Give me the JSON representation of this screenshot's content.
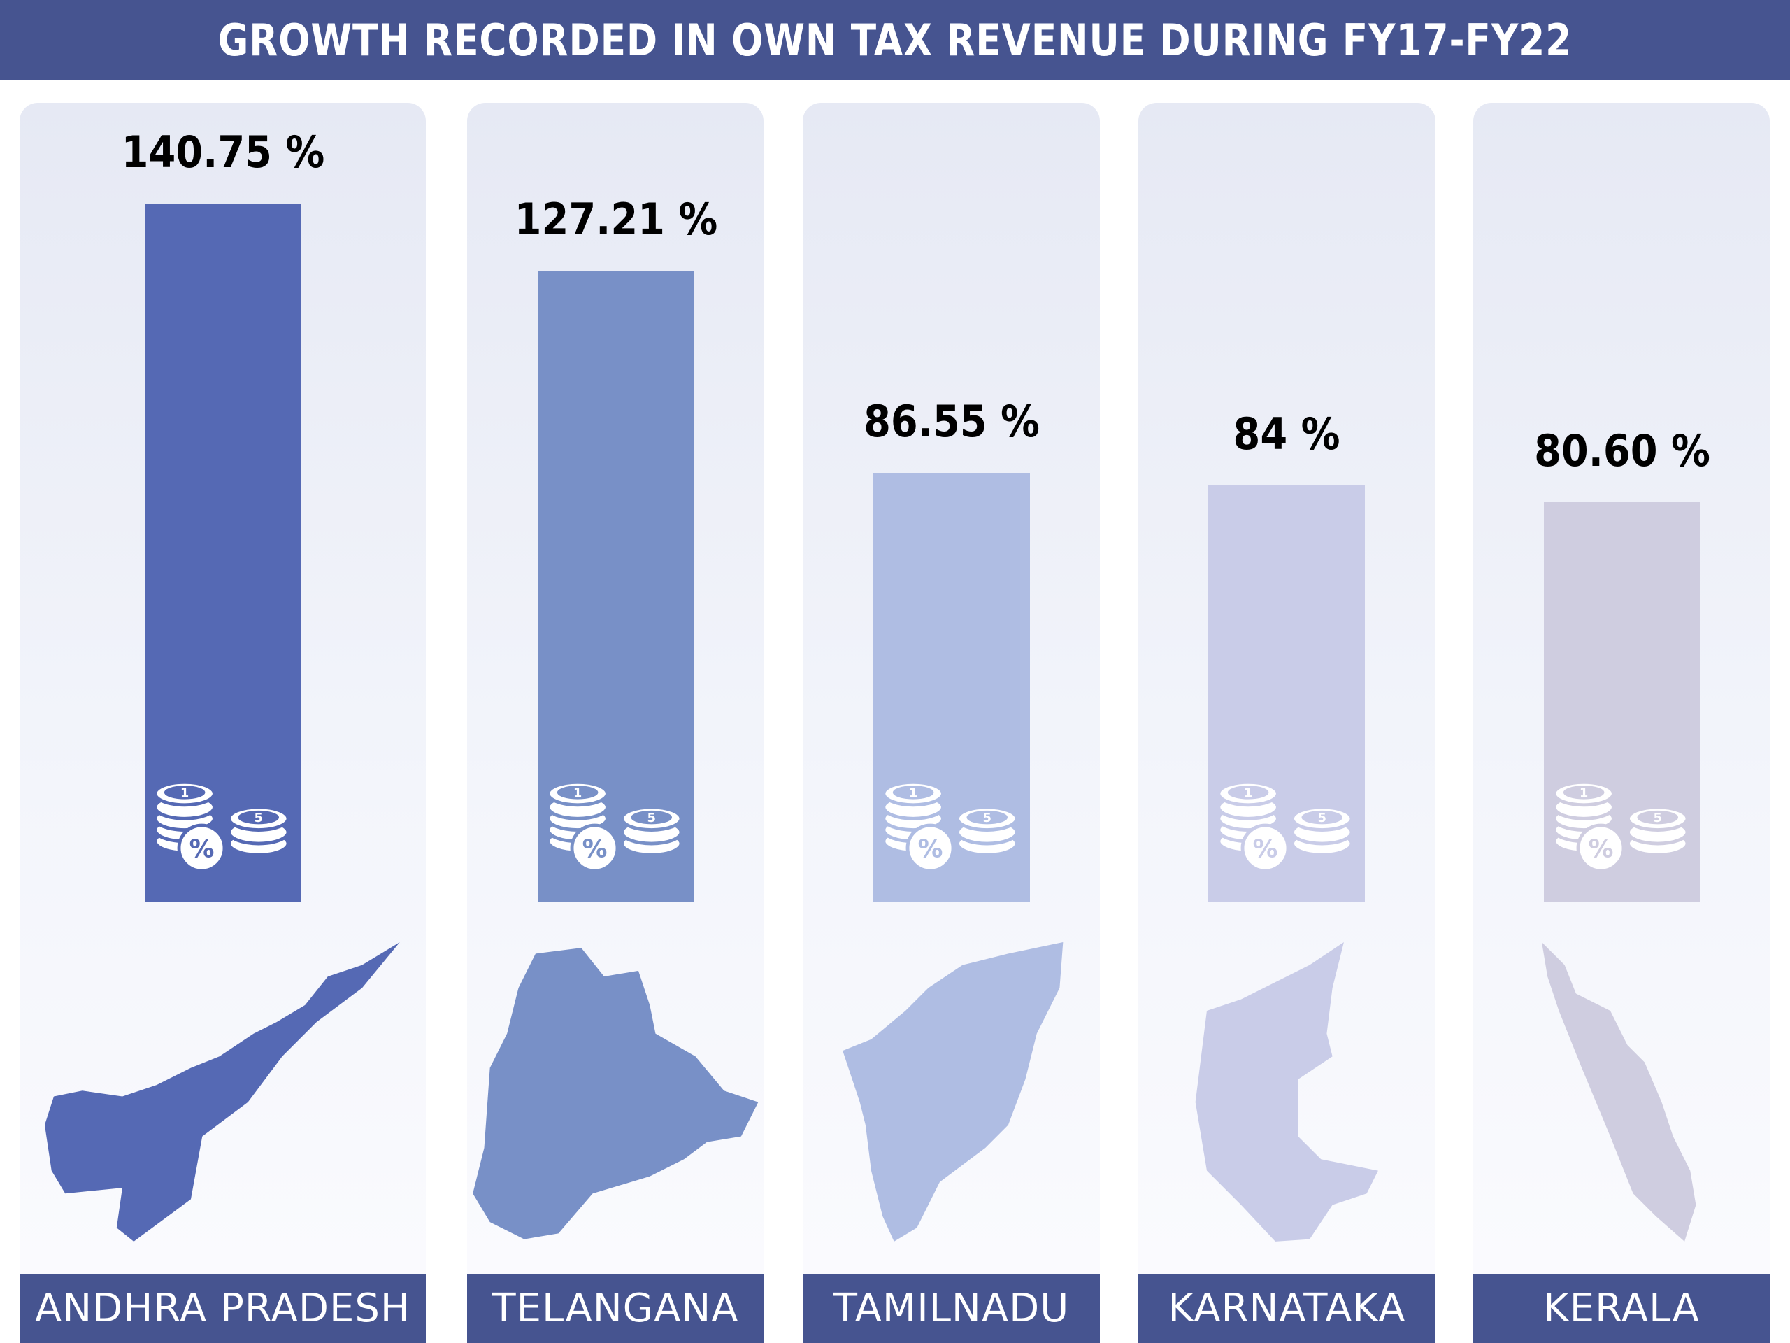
{
  "chart_data": {
    "type": "bar",
    "title": "GROWTH RECORDED IN OWN TAX REVENUE DURING FY17-FY22",
    "categories": [
      "ANDHRA PRADESH",
      "TELANGANA",
      "TAMILNADU",
      "KARNATAKA",
      "KERALA"
    ],
    "values": [
      140.75,
      127.21,
      86.55,
      84,
      80.6
    ],
    "data_labels": [
      "140.75 %",
      "127.21 %",
      "86.55 %",
      "84 %",
      "80.60 %"
    ],
    "colors": [
      "#5569b4",
      "#7890c7",
      "#afbde3",
      "#c9cce8",
      "#cfcde0"
    ],
    "icons": [
      "coin-stack-percent-icon",
      "state-map-icon"
    ],
    "header_color": "#465490",
    "grid": false,
    "legend": "none",
    "ylim": [
      0,
      140.75
    ]
  }
}
